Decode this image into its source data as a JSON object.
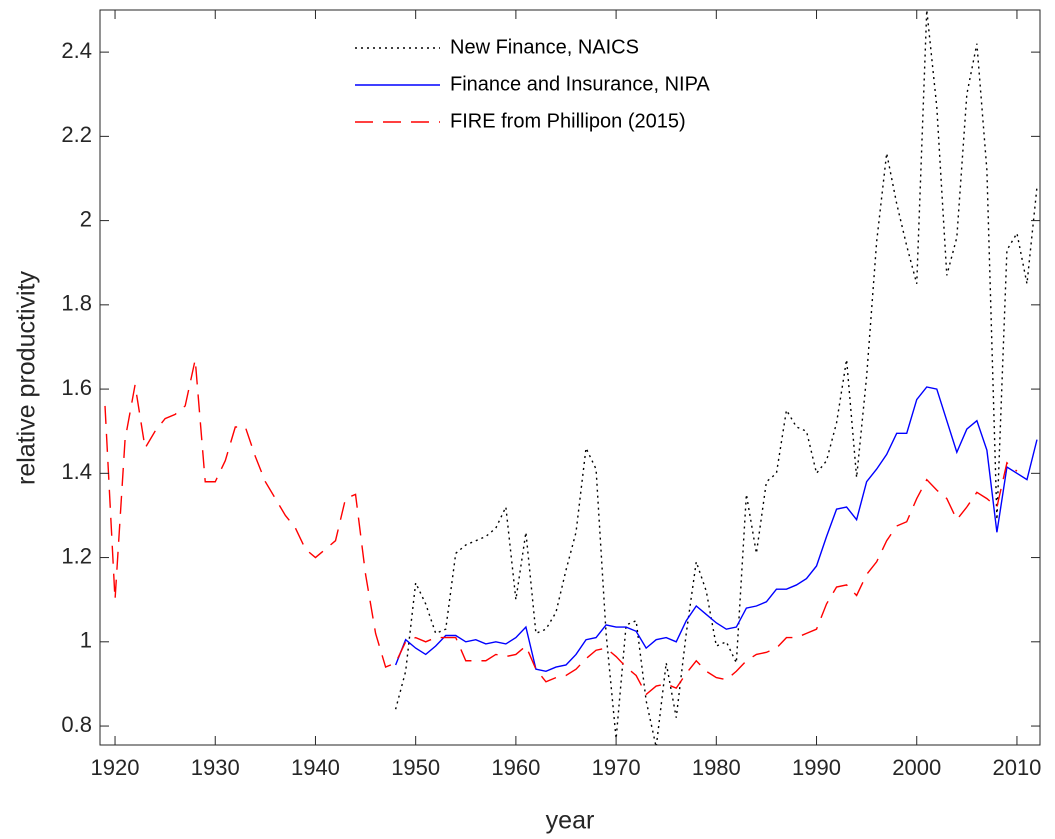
{
  "chart_data": {
    "type": "line",
    "xlabel": "year",
    "ylabel": "relative productivity",
    "xlim": [
      1918.5,
      2012.3
    ],
    "ylim": [
      0.755,
      2.5
    ],
    "xticks": [
      1920,
      1930,
      1940,
      1950,
      1960,
      1970,
      1980,
      1990,
      2000,
      2010
    ],
    "yticks": [
      0.8,
      1,
      1.2,
      1.4,
      1.6,
      1.8,
      2,
      2.2,
      2.4
    ],
    "grid": false,
    "legend": "top",
    "x": [
      1919,
      1920,
      1921,
      1922,
      1923,
      1924,
      1925,
      1926,
      1927,
      1928,
      1929,
      1930,
      1931,
      1932,
      1933,
      1934,
      1935,
      1936,
      1937,
      1938,
      1939,
      1940,
      1941,
      1942,
      1943,
      1944,
      1945,
      1946,
      1947,
      1948,
      1949,
      1950,
      1951,
      1952,
      1953,
      1954,
      1955,
      1956,
      1957,
      1958,
      1959,
      1960,
      1961,
      1962,
      1963,
      1964,
      1965,
      1966,
      1967,
      1968,
      1969,
      1970,
      1971,
      1972,
      1973,
      1974,
      1975,
      1976,
      1977,
      1978,
      1979,
      1980,
      1981,
      1982,
      1983,
      1984,
      1985,
      1986,
      1987,
      1988,
      1989,
      1990,
      1991,
      1992,
      1993,
      1994,
      1995,
      1996,
      1997,
      1998,
      1999,
      2000,
      2001,
      2002,
      2003,
      2004,
      2005,
      2006,
      2007,
      2008,
      2009,
      2010,
      2011,
      2012
    ],
    "series": [
      {
        "name": "New Finance, NAICS",
        "color": "#000000",
        "dash": "dotted",
        "values": [
          null,
          null,
          null,
          null,
          null,
          null,
          null,
          null,
          null,
          null,
          null,
          null,
          null,
          null,
          null,
          null,
          null,
          null,
          null,
          null,
          null,
          null,
          null,
          null,
          null,
          null,
          null,
          null,
          null,
          0.84,
          0.93,
          1.14,
          1.09,
          1.02,
          1.03,
          1.21,
          1.23,
          1.24,
          1.25,
          1.27,
          1.32,
          1.1,
          1.26,
          1.02,
          1.03,
          1.07,
          1.17,
          1.26,
          1.46,
          1.41,
          1.02,
          0.77,
          1.04,
          1.05,
          0.86,
          0.75,
          0.95,
          0.82,
          1.02,
          1.19,
          1.12,
          0.99,
          1.0,
          0.95,
          1.35,
          1.21,
          1.38,
          1.4,
          1.55,
          1.51,
          1.5,
          1.4,
          1.43,
          1.52,
          1.67,
          1.39,
          1.63,
          1.95,
          2.16,
          2.04,
          1.94,
          1.85,
          2.5,
          2.27,
          1.87,
          1.96,
          2.3,
          2.42,
          2.12,
          1.29,
          1.93,
          1.97,
          1.85,
          2.08
        ]
      },
      {
        "name": "Finance and Insurance, NIPA",
        "color": "#0000ff",
        "dash": "solid",
        "values": [
          null,
          null,
          null,
          null,
          null,
          null,
          null,
          null,
          null,
          null,
          null,
          null,
          null,
          null,
          null,
          null,
          null,
          null,
          null,
          null,
          null,
          null,
          null,
          null,
          null,
          null,
          null,
          null,
          null,
          0.945,
          1.005,
          0.985,
          0.97,
          0.99,
          1.015,
          1.015,
          1.0,
          1.005,
          0.995,
          1.0,
          0.995,
          1.01,
          1.035,
          0.935,
          0.93,
          0.94,
          0.945,
          0.97,
          1.005,
          1.01,
          1.04,
          1.035,
          1.035,
          1.025,
          0.985,
          1.005,
          1.01,
          1.0,
          1.05,
          1.085,
          1.065,
          1.045,
          1.03,
          1.035,
          1.08,
          1.085,
          1.095,
          1.125,
          1.125,
          1.135,
          1.15,
          1.18,
          1.25,
          1.315,
          1.32,
          1.29,
          1.38,
          1.41,
          1.445,
          1.495,
          1.495,
          1.575,
          1.605,
          1.6,
          1.525,
          1.45,
          1.505,
          1.525,
          1.455,
          1.26,
          1.415,
          1.4,
          1.385,
          1.48
        ]
      },
      {
        "name": "FIRE from Phillipon (2015)",
        "color": "#ff0000",
        "dash": "dashed",
        "values": [
          1.56,
          1.1,
          1.48,
          1.61,
          1.46,
          1.5,
          1.53,
          1.54,
          1.56,
          1.67,
          1.38,
          1.38,
          1.43,
          1.51,
          1.51,
          1.44,
          1.38,
          1.34,
          1.3,
          1.27,
          1.22,
          1.2,
          1.22,
          1.24,
          1.34,
          1.35,
          1.16,
          1.02,
          0.94,
          0.95,
          1.0,
          1.01,
          1.0,
          1.01,
          1.01,
          1.01,
          0.955,
          0.955,
          0.955,
          0.97,
          0.965,
          0.97,
          0.99,
          0.935,
          0.905,
          0.915,
          0.92,
          0.935,
          0.96,
          0.98,
          0.985,
          0.965,
          0.94,
          0.92,
          0.875,
          0.895,
          0.9,
          0.89,
          0.925,
          0.955,
          0.93,
          0.915,
          0.91,
          0.93,
          0.955,
          0.97,
          0.975,
          0.985,
          1.01,
          1.01,
          1.02,
          1.03,
          1.09,
          1.13,
          1.135,
          1.11,
          1.16,
          1.19,
          1.24,
          1.275,
          1.285,
          1.34,
          1.385,
          1.36,
          1.34,
          1.29,
          1.32,
          1.355,
          1.34,
          1.32,
          1.425,
          1.405,
          null,
          null
        ]
      }
    ]
  }
}
